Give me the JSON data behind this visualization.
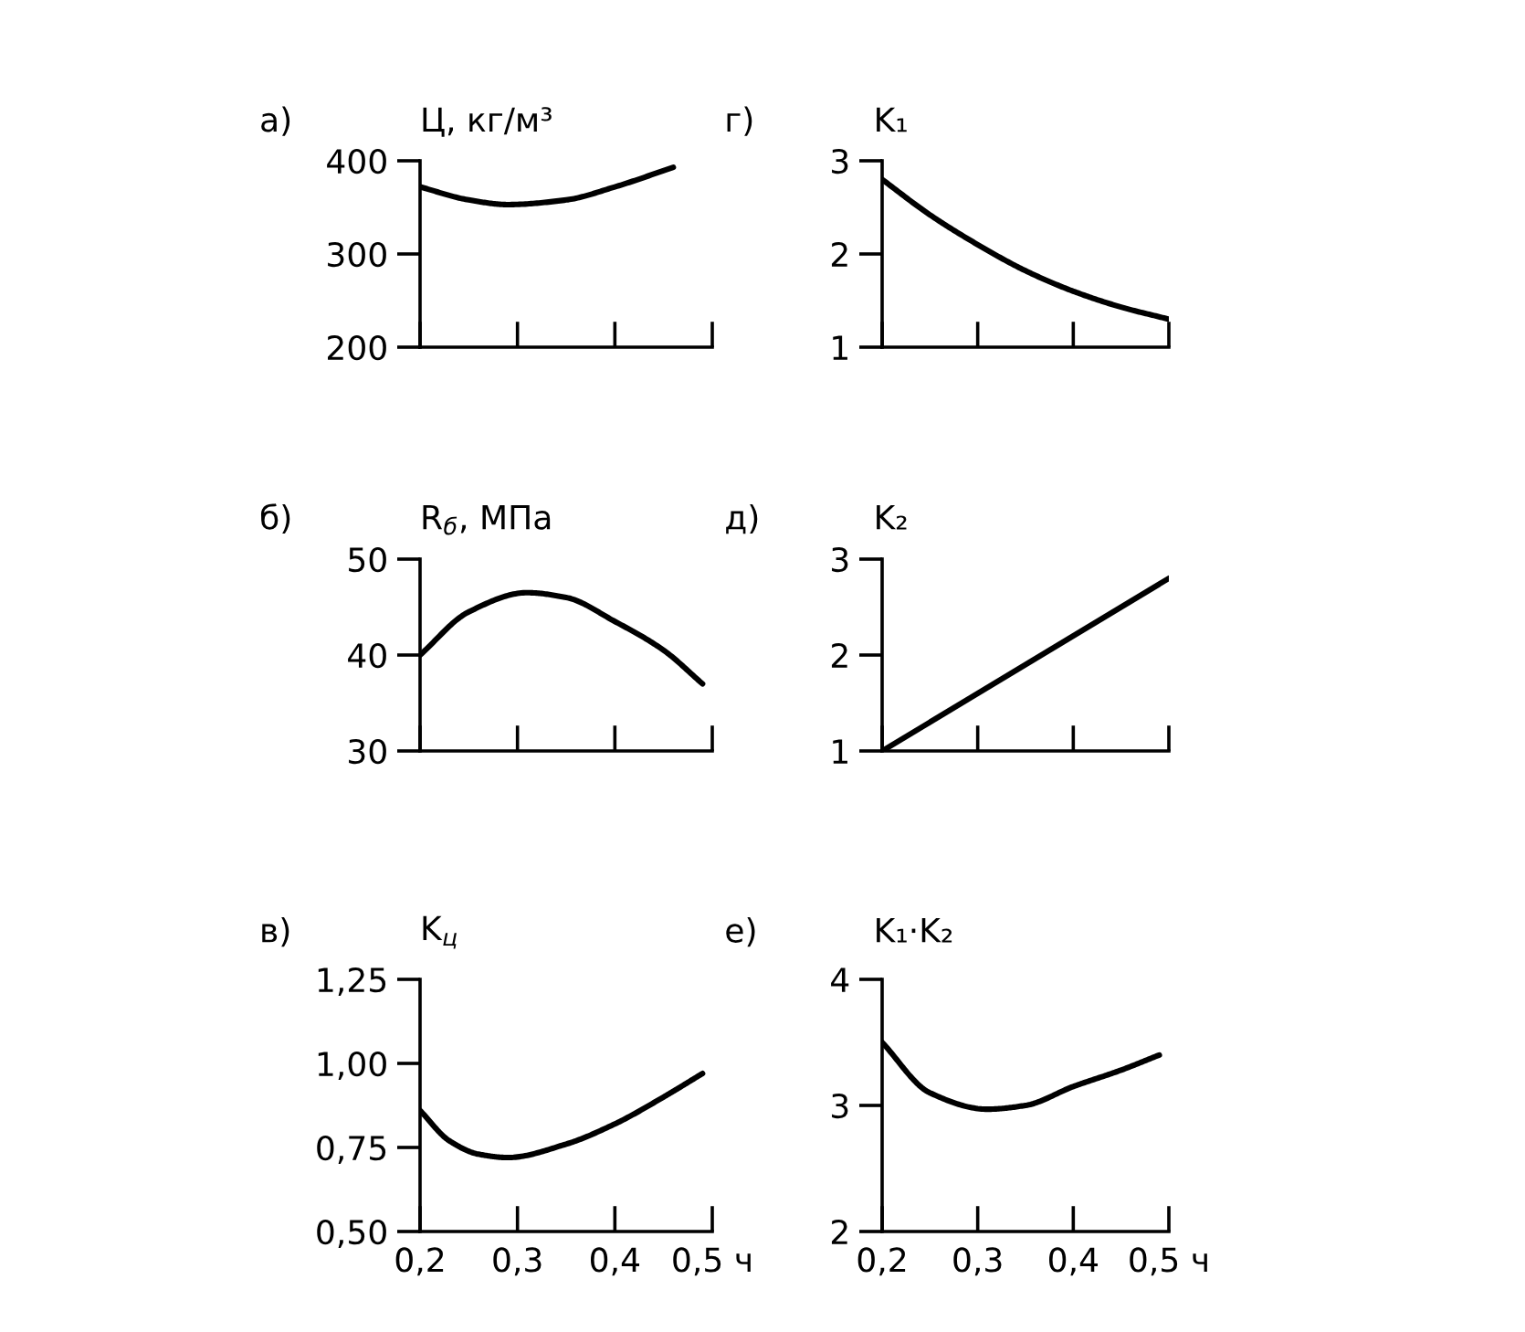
{
  "chart_data": [
    {
      "type": "line",
      "title": "а)",
      "ylabel": "Ц, кг/м³",
      "x": [
        0.2,
        0.25,
        0.29,
        0.35,
        0.4,
        0.46
      ],
      "values": [
        372,
        358,
        353,
        358,
        372,
        393
      ],
      "color": "#000000",
      "xlim": [
        0.2,
        0.5
      ],
      "xticks": [
        {
          "value": 0.2,
          "label": null
        },
        {
          "value": 0.3,
          "label": null
        },
        {
          "value": 0.4,
          "label": null
        },
        {
          "value": 0.5,
          "label": null
        }
      ],
      "ylim": [
        200,
        400
      ],
      "yticks": [
        200,
        300,
        400
      ],
      "tick_labels": "y"
    },
    {
      "type": "line",
      "title": "г)",
      "ylabel": "K₁",
      "x": [
        0.2,
        0.25,
        0.3,
        0.35,
        0.4,
        0.45,
        0.5
      ],
      "values": [
        2.8,
        2.42,
        2.1,
        1.82,
        1.6,
        1.43,
        1.3
      ],
      "color": "#000000",
      "xlim": [
        0.2,
        0.5
      ],
      "xticks": [
        {
          "value": 0.2,
          "label": null
        },
        {
          "value": 0.3,
          "label": null
        },
        {
          "value": 0.4,
          "label": null
        },
        {
          "value": 0.5,
          "label": null
        }
      ],
      "ylim": [
        1,
        3
      ],
      "yticks": [
        1,
        2,
        3
      ],
      "tick_labels": "y"
    },
    {
      "type": "line",
      "title": "б)",
      "ylabel": "R$_{б}$, МПа",
      "x": [
        0.2,
        0.25,
        0.31,
        0.35,
        0.4,
        0.45,
        0.49
      ],
      "values": [
        40,
        44.5,
        46.5,
        46,
        43.5,
        40.5,
        37
      ],
      "color": "#000000",
      "xlim": [
        0.2,
        0.5
      ],
      "xticks": [
        {
          "value": 0.2,
          "label": null
        },
        {
          "value": 0.3,
          "label": null
        },
        {
          "value": 0.4,
          "label": null
        },
        {
          "value": 0.5,
          "label": null
        }
      ],
      "ylim": [
        30,
        50
      ],
      "yticks": [
        30,
        40,
        50
      ],
      "tick_labels": "y"
    },
    {
      "type": "line",
      "title": "д)",
      "ylabel": "K₂",
      "x": [
        0.2,
        0.5
      ],
      "values": [
        1,
        2.8
      ],
      "color": "#000000",
      "xlim": [
        0.2,
        0.5
      ],
      "xticks": [
        {
          "value": 0.2,
          "label": null
        },
        {
          "value": 0.3,
          "label": null
        },
        {
          "value": 0.4,
          "label": null
        },
        {
          "value": 0.5,
          "label": null
        }
      ],
      "ylim": [
        1,
        3
      ],
      "yticks": [
        1,
        2,
        3
      ],
      "tick_labels": "y"
    },
    {
      "type": "line",
      "title": "в)",
      "ylabel": "K$_{ц}$",
      "x": [
        0.2,
        0.23,
        0.26,
        0.29,
        0.35,
        0.4,
        0.45,
        0.49
      ],
      "values": [
        0.86,
        0.77,
        0.73,
        0.72,
        0.76,
        0.82,
        0.9,
        0.97
      ],
      "color": "#000000",
      "xlim": [
        0.2,
        0.5
      ],
      "xticks": [
        {
          "value": 0.2,
          "label": "0,2"
        },
        {
          "value": 0.3,
          "label": "0,3"
        },
        {
          "value": 0.4,
          "label": "0,4"
        },
        {
          "value": 0.5,
          "label": "0,5 ч"
        }
      ],
      "ylim": [
        0.5,
        1.25
      ],
      "yticks": [
        {
          "value": 0.5,
          "label": "0,50"
        },
        {
          "value": 0.75,
          "label": "0,75"
        },
        {
          "value": 1.0,
          "label": "1,00"
        },
        {
          "value": 1.25,
          "label": "1,25"
        }
      ]
    },
    {
      "type": "line",
      "title": "е)",
      "ylabel": "K₁·K₂",
      "x": [
        0.2,
        0.25,
        0.31,
        0.35,
        0.4,
        0.45,
        0.49
      ],
      "values": [
        3.5,
        3.1,
        2.97,
        3.0,
        3.15,
        3.28,
        3.4
      ],
      "color": "#000000",
      "xlim": [
        0.2,
        0.5
      ],
      "xticks": [
        {
          "value": 0.2,
          "label": "0,2"
        },
        {
          "value": 0.3,
          "label": "0,3"
        },
        {
          "value": 0.4,
          "label": "0,4"
        },
        {
          "value": 0.5,
          "label": "0,5 ч"
        }
      ],
      "ylim": [
        2,
        4
      ],
      "yticks": [
        2,
        3,
        4
      ]
    }
  ]
}
